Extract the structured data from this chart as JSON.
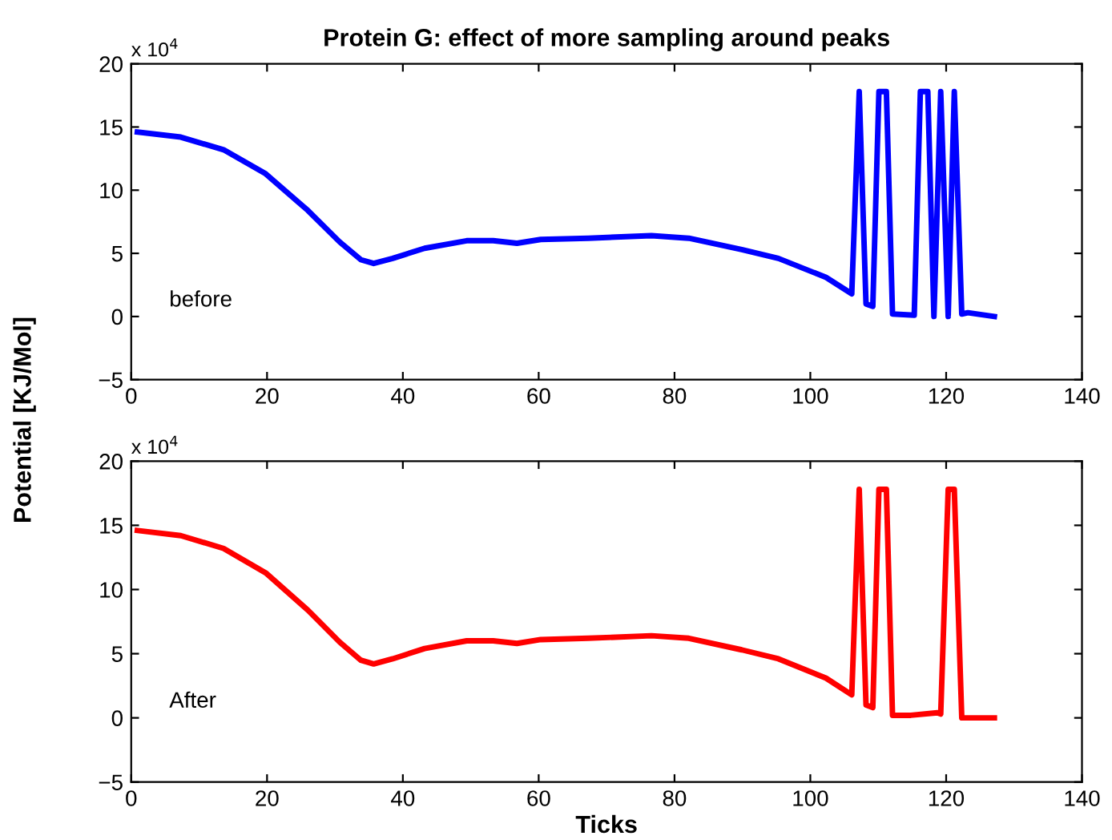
{
  "chart_data": [
    {
      "type": "line",
      "title": "Protein G: effect of more sampling around peaks",
      "ylabel": "Potential [KJ/Mol]",
      "annotations": [
        "x 10$^{4}$",
        "before"
      ],
      "x": [
        0.9,
        7.3,
        13.6,
        19.8,
        26,
        30.7,
        33.8,
        35.7,
        38.5,
        43.2,
        49.4,
        53.3,
        56.8,
        60.3,
        67.3,
        76.6,
        82.1,
        89.9,
        95.3,
        102.3,
        106.1,
        107.2,
        108.2,
        109.2,
        110.1,
        111.2,
        112.1,
        115.3,
        116.2,
        117.3,
        118.2,
        119.2,
        120.3,
        121.2,
        122.3,
        123.2,
        127.1
      ],
      "series": [
        {
          "color": "#0000ff",
          "values": [
            14.6,
            14.2,
            13.2,
            11.3,
            8.4,
            5.9,
            4.5,
            4.2,
            4.6,
            5.4,
            6.0,
            6.0,
            5.8,
            6.1,
            6.2,
            6.4,
            6.2,
            5.3,
            4.6,
            3.1,
            1.8,
            17.8,
            1.0,
            0.8,
            17.8,
            17.8,
            0.2,
            0.1,
            17.8,
            17.8,
            0,
            17.8,
            0,
            17.8,
            0.2,
            0.3,
            0
          ]
        }
      ],
      "xlim": [
        0,
        140
      ],
      "xticks": [
        0,
        20,
        40,
        60,
        80,
        100,
        120,
        140
      ],
      "ylim": [
        -5,
        20
      ],
      "yticks": [
        {
          "value": -5,
          "label": "−5"
        },
        0,
        5,
        10,
        15,
        20
      ],
      "grid": false,
      "legend": false
    },
    {
      "type": "line",
      "xlabel": "Ticks",
      "annotations": [
        "x 10$^{4}$",
        "After"
      ],
      "x": [
        0.9,
        7.3,
        13.6,
        19.8,
        26,
        30.7,
        33.8,
        35.7,
        38.5,
        43.2,
        49.4,
        53.3,
        56.8,
        60.3,
        67.3,
        76.6,
        82.1,
        89.9,
        95.3,
        102.3,
        106.1,
        107.2,
        108.2,
        109.2,
        110.1,
        111.2,
        112.1,
        114.8,
        118.7,
        119.2,
        120.3,
        121.2,
        122.3,
        127.1
      ],
      "series": [
        {
          "color": "#ff0000",
          "values": [
            14.6,
            14.2,
            13.2,
            11.3,
            8.4,
            5.9,
            4.5,
            4.2,
            4.6,
            5.4,
            6.0,
            6.0,
            5.8,
            6.1,
            6.2,
            6.4,
            6.2,
            5.3,
            4.6,
            3.1,
            1.8,
            17.8,
            1.0,
            0.8,
            17.8,
            17.8,
            0.2,
            0.2,
            0.4,
            0.3,
            17.8,
            17.8,
            0,
            0
          ]
        }
      ],
      "xlim": [
        0,
        140
      ],
      "xticks": [
        0,
        20,
        40,
        60,
        80,
        100,
        120,
        140
      ],
      "ylim": [
        -5,
        20
      ],
      "yticks": [
        {
          "value": -5,
          "label": "−5"
        },
        0,
        5,
        10,
        15,
        20
      ],
      "grid": false,
      "legend": false
    }
  ]
}
